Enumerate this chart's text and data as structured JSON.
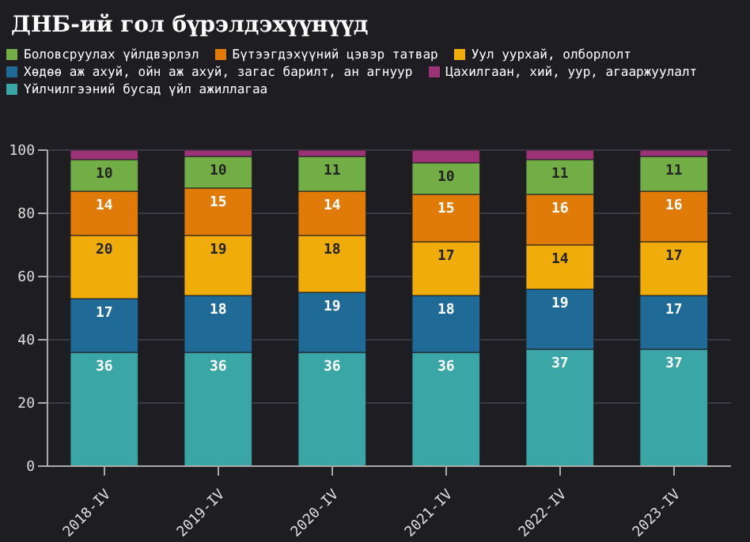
{
  "chart_data": {
    "type": "bar",
    "title": "ДНБ-ий гол бүрэлдэхүүнүүд",
    "stacked": true,
    "categories": [
      "2018-IV",
      "2019-IV",
      "2020-IV",
      "2021-IV",
      "2022-IV",
      "2023-IV"
    ],
    "series": [
      {
        "name": "Үйлчилгээний бусад үйл ажиллагаа",
        "color": "#3aa6a6",
        "values": [
          36,
          36,
          36,
          36,
          37,
          37
        ],
        "value_labels": [
          "36",
          "36",
          "36",
          "36",
          "37",
          "37"
        ]
      },
      {
        "name": "Хөдөө аж ахуй, ойн аж ахуй, загас барилт, ан агнуур",
        "color": "#1f6a96",
        "values": [
          17,
          18,
          19,
          18,
          19,
          17
        ],
        "value_labels": [
          "17",
          "18",
          "19",
          "18",
          "19",
          "17"
        ]
      },
      {
        "name": "Уул уурхай, олборлолт",
        "color": "#f0ad0a",
        "values": [
          20,
          19,
          18,
          17,
          14,
          17
        ],
        "value_labels": [
          "20",
          "19",
          "18",
          "17",
          "14",
          "17"
        ]
      },
      {
        "name": "Бүтээгдэхүүний цэвэр татвар",
        "color": "#e07b08",
        "values": [
          14,
          15,
          14,
          15,
          16,
          16
        ],
        "value_labels": [
          "14",
          "15",
          "14",
          "15",
          "16",
          "16"
        ]
      },
      {
        "name": "Боловсруулах үйлдвэрлэл",
        "color": "#72ad46",
        "values": [
          10,
          10,
          11,
          10,
          11,
          11
        ],
        "value_labels": [
          "10",
          "10",
          "11",
          "10",
          "11",
          "11"
        ]
      },
      {
        "name": "Цахилгаан, хий, уур, агааржуулалт",
        "color": "#9b3375",
        "values": [
          3,
          2,
          2,
          4,
          3,
          2
        ],
        "value_labels": [
          null,
          null,
          null,
          null,
          null,
          null
        ]
      }
    ],
    "ylim": [
      0,
      100
    ],
    "yticks": [
      0,
      20,
      40,
      60,
      80,
      100
    ],
    "grid": "y",
    "legend": "top"
  }
}
